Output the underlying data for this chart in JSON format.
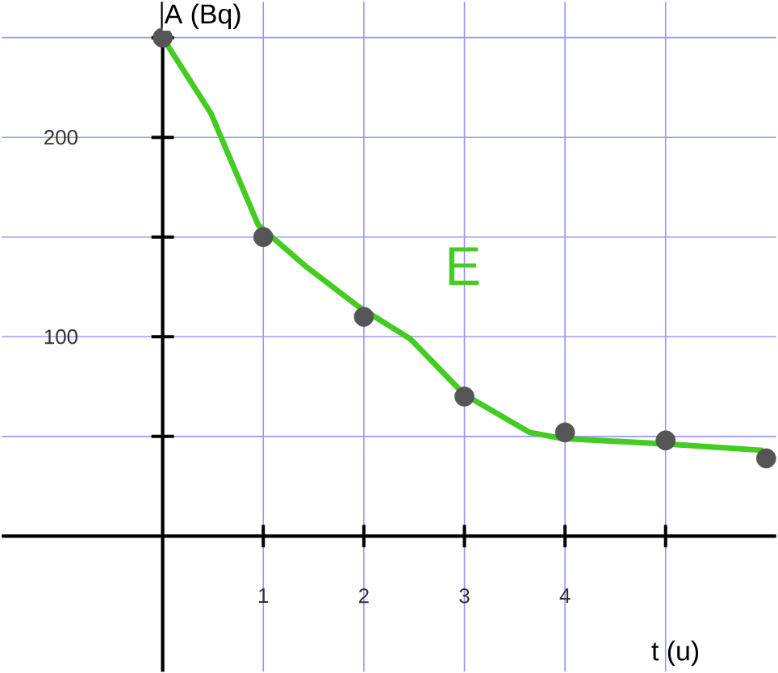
{
  "chart_data": {
    "type": "scatter",
    "xlabel": "t (u)",
    "ylabel": "A (Bq)",
    "xlim": [
      -1.6,
      6.1
    ],
    "ylim": [
      -68,
      268
    ],
    "xticks": [
      1,
      2,
      3,
      4,
      {
        "value": 5,
        "label": null
      }
    ],
    "yticks": [
      {
        "value": 50,
        "label": null
      },
      100,
      {
        "value": 150,
        "label": null
      },
      200,
      {
        "value": 250,
        "label": null
      }
    ],
    "grid": true,
    "legend": false,
    "series": [
      {
        "color": "#555555",
        "marker": "circle",
        "x": [
          0,
          1,
          2,
          3,
          4,
          5,
          6.0
        ],
        "values": [
          250,
          150,
          110,
          70,
          52,
          48,
          39
        ]
      },
      {
        "type": "line",
        "name": "E",
        "color": "#44cc22",
        "marker": "none",
        "line_style": "solid",
        "x": [
          0,
          0.48,
          0.95,
          1.43,
          1.95,
          2.46,
          3.0,
          3.65,
          3.97,
          5.08,
          5.97
        ],
        "values": [
          250,
          212,
          156,
          135,
          115,
          99,
          71,
          52,
          49,
          46,
          43
        ]
      }
    ]
  }
}
